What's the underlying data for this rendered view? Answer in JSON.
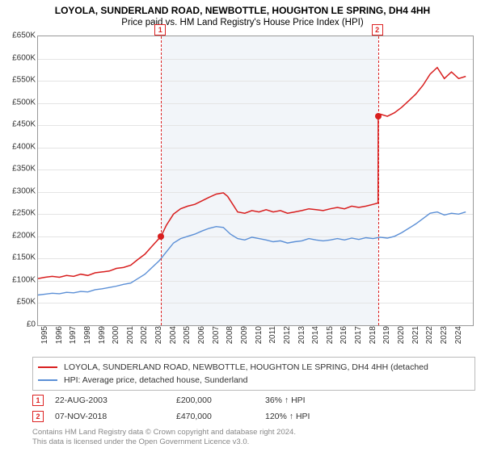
{
  "title": "LOYOLA, SUNDERLAND ROAD, NEWBOTTLE, HOUGHTON LE SPRING, DH4 4HH",
  "subtitle": "Price paid vs. HM Land Registry's House Price Index (HPI)",
  "chart": {
    "type": "line",
    "background_color": "#ffffff",
    "shaded_color": "#f2f5f9",
    "grid_color": "#e4e4e4",
    "border_color": "#999999",
    "x_years": [
      1995,
      1996,
      1997,
      1998,
      1999,
      2000,
      2001,
      2002,
      2003,
      2004,
      2005,
      2006,
      2007,
      2008,
      2009,
      2010,
      2011,
      2012,
      2013,
      2014,
      2015,
      2016,
      2017,
      2018,
      2019,
      2020,
      2021,
      2022,
      2023,
      2024
    ],
    "xlim": [
      1995,
      2025.5
    ],
    "ylim": [
      0,
      650000
    ],
    "ytick_step": 50000,
    "ytick_prefix": "£",
    "ytick_suffix": "K",
    "label_fontsize": 10,
    "series": [
      {
        "name": "property",
        "color": "#d81e1e",
        "width": 1.5,
        "points": [
          [
            1995,
            105000
          ],
          [
            1995.5,
            108000
          ],
          [
            1996,
            110000
          ],
          [
            1996.5,
            108000
          ],
          [
            1997,
            112000
          ],
          [
            1997.5,
            110000
          ],
          [
            1998,
            115000
          ],
          [
            1998.5,
            112000
          ],
          [
            1999,
            118000
          ],
          [
            1999.5,
            120000
          ],
          [
            2000,
            122000
          ],
          [
            2000.5,
            128000
          ],
          [
            2001,
            130000
          ],
          [
            2001.5,
            135000
          ],
          [
            2002,
            148000
          ],
          [
            2002.5,
            160000
          ],
          [
            2003,
            178000
          ],
          [
            2003.63,
            200000
          ],
          [
            2004,
            225000
          ],
          [
            2004.5,
            250000
          ],
          [
            2005,
            262000
          ],
          [
            2005.5,
            268000
          ],
          [
            2006,
            272000
          ],
          [
            2006.5,
            280000
          ],
          [
            2007,
            288000
          ],
          [
            2007.5,
            295000
          ],
          [
            2008,
            298000
          ],
          [
            2008.3,
            290000
          ],
          [
            2008.7,
            270000
          ],
          [
            2009,
            255000
          ],
          [
            2009.5,
            252000
          ],
          [
            2010,
            258000
          ],
          [
            2010.5,
            255000
          ],
          [
            2011,
            260000
          ],
          [
            2011.5,
            255000
          ],
          [
            2012,
            258000
          ],
          [
            2012.5,
            252000
          ],
          [
            2013,
            255000
          ],
          [
            2013.5,
            258000
          ],
          [
            2014,
            262000
          ],
          [
            2014.5,
            260000
          ],
          [
            2015,
            258000
          ],
          [
            2015.5,
            262000
          ],
          [
            2016,
            265000
          ],
          [
            2016.5,
            262000
          ],
          [
            2017,
            268000
          ],
          [
            2017.5,
            265000
          ],
          [
            2018,
            268000
          ],
          [
            2018.5,
            272000
          ],
          [
            2018.85,
            275000
          ],
          [
            2018.86,
            470000
          ],
          [
            2019,
            475000
          ],
          [
            2019.5,
            470000
          ],
          [
            2020,
            478000
          ],
          [
            2020.5,
            490000
          ],
          [
            2021,
            505000
          ],
          [
            2021.5,
            520000
          ],
          [
            2022,
            540000
          ],
          [
            2022.5,
            565000
          ],
          [
            2023,
            580000
          ],
          [
            2023.5,
            555000
          ],
          [
            2024,
            570000
          ],
          [
            2024.5,
            555000
          ],
          [
            2025,
            560000
          ]
        ]
      },
      {
        "name": "hpi",
        "color": "#5b8fd6",
        "width": 1.4,
        "points": [
          [
            1995,
            68000
          ],
          [
            1995.5,
            70000
          ],
          [
            1996,
            72000
          ],
          [
            1996.5,
            71000
          ],
          [
            1997,
            74000
          ],
          [
            1997.5,
            73000
          ],
          [
            1998,
            76000
          ],
          [
            1998.5,
            75000
          ],
          [
            1999,
            80000
          ],
          [
            1999.5,
            82000
          ],
          [
            2000,
            85000
          ],
          [
            2000.5,
            88000
          ],
          [
            2001,
            92000
          ],
          [
            2001.5,
            95000
          ],
          [
            2002,
            105000
          ],
          [
            2002.5,
            115000
          ],
          [
            2003,
            130000
          ],
          [
            2003.5,
            145000
          ],
          [
            2004,
            165000
          ],
          [
            2004.5,
            185000
          ],
          [
            2005,
            195000
          ],
          [
            2005.5,
            200000
          ],
          [
            2006,
            205000
          ],
          [
            2006.5,
            212000
          ],
          [
            2007,
            218000
          ],
          [
            2007.5,
            222000
          ],
          [
            2008,
            220000
          ],
          [
            2008.5,
            205000
          ],
          [
            2009,
            195000
          ],
          [
            2009.5,
            192000
          ],
          [
            2010,
            198000
          ],
          [
            2010.5,
            195000
          ],
          [
            2011,
            192000
          ],
          [
            2011.5,
            188000
          ],
          [
            2012,
            190000
          ],
          [
            2012.5,
            185000
          ],
          [
            2013,
            188000
          ],
          [
            2013.5,
            190000
          ],
          [
            2014,
            195000
          ],
          [
            2014.5,
            192000
          ],
          [
            2015,
            190000
          ],
          [
            2015.5,
            192000
          ],
          [
            2016,
            195000
          ],
          [
            2016.5,
            192000
          ],
          [
            2017,
            196000
          ],
          [
            2017.5,
            193000
          ],
          [
            2018,
            197000
          ],
          [
            2018.5,
            195000
          ],
          [
            2019,
            198000
          ],
          [
            2019.5,
            196000
          ],
          [
            2020,
            200000
          ],
          [
            2020.5,
            208000
          ],
          [
            2021,
            218000
          ],
          [
            2021.5,
            228000
          ],
          [
            2022,
            240000
          ],
          [
            2022.5,
            252000
          ],
          [
            2023,
            255000
          ],
          [
            2023.5,
            248000
          ],
          [
            2024,
            252000
          ],
          [
            2024.5,
            250000
          ],
          [
            2025,
            255000
          ]
        ]
      }
    ],
    "markers": [
      {
        "num": "1",
        "x": 2003.63,
        "y": 200000,
        "dot_color": "#d81e1e"
      },
      {
        "num": "2",
        "x": 2018.85,
        "y": 470000,
        "dot_color": "#d81e1e"
      }
    ],
    "shaded_ranges": [
      [
        2003.63,
        2018.85
      ]
    ]
  },
  "legend": {
    "items": [
      {
        "color": "#d81e1e",
        "label": "LOYOLA, SUNDERLAND ROAD, NEWBOTTLE, HOUGHTON LE SPRING, DH4 4HH (detached"
      },
      {
        "color": "#5b8fd6",
        "label": "HPI: Average price, detached house, Sunderland"
      }
    ]
  },
  "data_rows": [
    {
      "num": "1",
      "date": "22-AUG-2003",
      "price": "£200,000",
      "delta": "36% ↑ HPI"
    },
    {
      "num": "2",
      "date": "07-NOV-2018",
      "price": "£470,000",
      "delta": "120% ↑ HPI"
    }
  ],
  "footer_line1": "Contains HM Land Registry data © Crown copyright and database right 2024.",
  "footer_line2": "This data is licensed under the Open Government Licence v3.0."
}
